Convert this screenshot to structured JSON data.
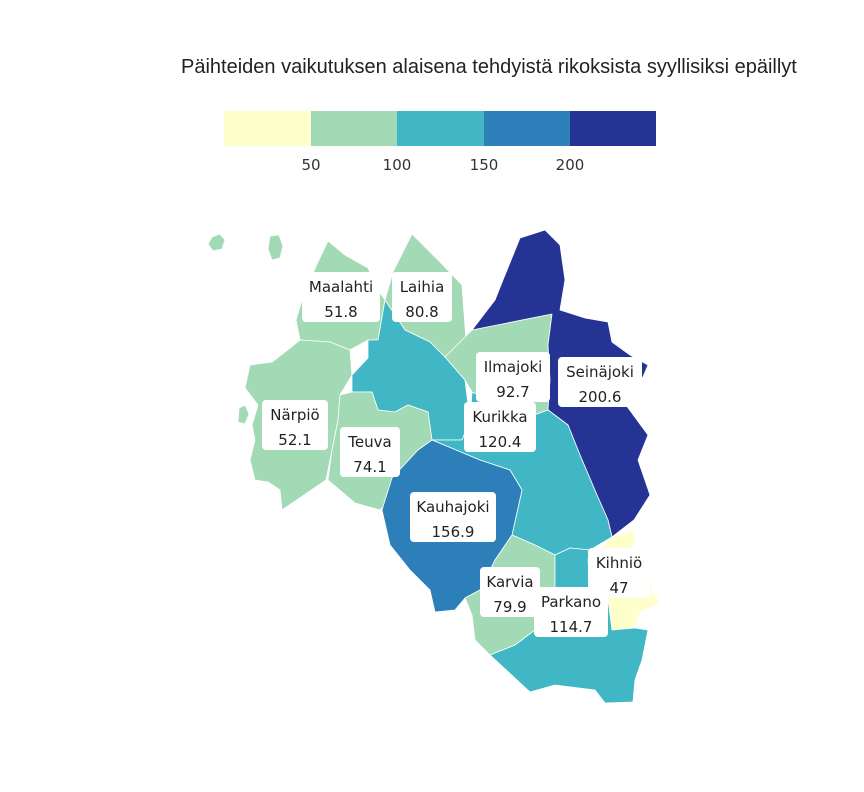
{
  "title": "Päihteiden vaikutuksen alaisena tehdyistä rikoksista syyllisiksi epäillyt",
  "legend": {
    "colors": [
      "#ffffcc",
      "#a1dab4",
      "#41b6c4",
      "#2c7fb8",
      "#253494"
    ],
    "ticks": [
      "50",
      "100",
      "150",
      "200"
    ]
  },
  "regions": [
    {
      "id": "maalahti",
      "name": "Maalahti",
      "value": "51.8",
      "color": "#a1dab4"
    },
    {
      "id": "laihia",
      "name": "Laihia",
      "value": "80.8",
      "color": "#a1dab4"
    },
    {
      "id": "ilmajoki",
      "name": "Ilmajoki",
      "value": "92.7",
      "color": "#a1dab4"
    },
    {
      "id": "seinajoki",
      "name": "Seinäjoki",
      "value": "200.6",
      "color": "#253494"
    },
    {
      "id": "narpio",
      "name": "Närpiö",
      "value": "52.1",
      "color": "#a1dab4"
    },
    {
      "id": "teuva",
      "name": "Teuva",
      "value": "74.1",
      "color": "#a1dab4"
    },
    {
      "id": "kurikka",
      "name": "Kurikka",
      "value": "120.4",
      "color": "#41b6c4"
    },
    {
      "id": "kauhajoki",
      "name": "Kauhajoki",
      "value": "156.9",
      "color": "#2c7fb8"
    },
    {
      "id": "kihnio",
      "name": "Kihniö",
      "value": "47",
      "color": "#ffffcc"
    },
    {
      "id": "karvia",
      "name": "Karvia",
      "value": "79.9",
      "color": "#a1dab4"
    },
    {
      "id": "parkano",
      "name": "Parkano",
      "value": "114.7",
      "color": "#41b6c4"
    }
  ]
}
